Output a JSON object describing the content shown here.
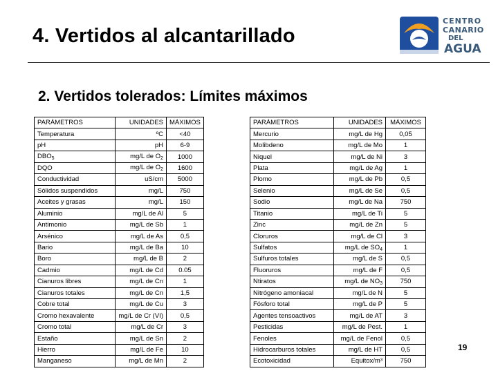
{
  "header": {
    "title": "4. Vertidos al alcantarillado",
    "logo_lines": [
      "CENTRO",
      "CANARIO",
      "DEL",
      "AGUA"
    ]
  },
  "subtitle": "2. Vertidos tolerados: Límites máximos",
  "table_left": {
    "headers": [
      "PARÁMETROS",
      "UNIDADES",
      "MÁXIMOS"
    ],
    "rows": [
      {
        "param": "Temperatura",
        "unit": "ºC",
        "max": "<40"
      },
      {
        "param": "pH",
        "unit": "pH",
        "max": "6-9"
      },
      {
        "param": "DBO",
        "param_sub": "5",
        "unit": "mg/L de O",
        "unit_sub": "2",
        "max": "1000"
      },
      {
        "param": "DQO",
        "unit": "mg/L de O",
        "unit_sub": "2",
        "max": "1600"
      },
      {
        "param": "Conductividad",
        "unit": "uS/cm",
        "max": "5000"
      },
      {
        "param": "Sólidos suspendidos",
        "unit": "mg/L",
        "max": "750"
      },
      {
        "param": "Aceites y grasas",
        "unit": "mg/L",
        "max": "150"
      },
      {
        "param": "Aluminio",
        "unit": "mg/L de Al",
        "max": "5"
      },
      {
        "param": "Antimonio",
        "unit": "mg/L de Sb",
        "max": "1"
      },
      {
        "param": "Arsénico",
        "unit": "mg/L de As",
        "max": "0,5"
      },
      {
        "param": "Bario",
        "unit": "mg/L de Ba",
        "max": "10"
      },
      {
        "param": "Boro",
        "unit": "mg/L de B",
        "max": "2"
      },
      {
        "param": "Cadmio",
        "unit": "mg/L de Cd",
        "max": "0.05"
      },
      {
        "param": "Cianuros libres",
        "unit": "mg/L de Cn",
        "max": "1"
      },
      {
        "param": "Cianuros totales",
        "unit": "mg/L de Cn",
        "max": "1,5"
      },
      {
        "param": "Cobre total",
        "unit": "mg/L de Cu",
        "max": "3"
      },
      {
        "param": "Cromo hexavalente",
        "unit": "mg/L de Cr (VI)",
        "max": "0,5"
      },
      {
        "param": "Cromo total",
        "unit": "mg/L de Cr",
        "max": "3"
      },
      {
        "param": "Estaño",
        "unit": "mg/L de Sn",
        "max": "2"
      },
      {
        "param": "Hierro",
        "unit": "mg/L de Fe",
        "max": "10"
      },
      {
        "param": "Manganeso",
        "unit": "mg/L de Mn",
        "max": "2"
      }
    ]
  },
  "table_right": {
    "headers": [
      "PARÁMETROS",
      "UNIDADES",
      "MÁXIMOS"
    ],
    "rows": [
      {
        "param": "Mercurio",
        "unit": "mg/L de Hg",
        "max": "0,05"
      },
      {
        "param": "Molibdeno",
        "unit": "mg/L de Mo",
        "max": "1"
      },
      {
        "param": "Niquel",
        "unit": "mg/L de Ni",
        "max": "3"
      },
      {
        "param": "Plata",
        "unit": "mg/L de Ag",
        "max": "1"
      },
      {
        "param": "Plomo",
        "unit": "mg/L de Pb",
        "max": "0,5"
      },
      {
        "param": "Selenio",
        "unit": "mg/L de Se",
        "max": "0,5"
      },
      {
        "param": "Sodio",
        "unit": "mg/L de Na",
        "max": "750"
      },
      {
        "param": "Titanio",
        "unit": "mg/L de Ti",
        "max": "5"
      },
      {
        "param": "Zinc",
        "unit": "mg/L de Zn",
        "max": "5"
      },
      {
        "param": "Cloruros",
        "unit": "mg/L de Cl",
        "max": "3"
      },
      {
        "param": "Sulfatos",
        "unit": "mg/L de SO",
        "unit_sub": "4",
        "max": "1"
      },
      {
        "param": "Sulfuros totales",
        "unit": "mg/L de S",
        "max": "0,5"
      },
      {
        "param": "Fluoruros",
        "unit": "mg/L de F",
        "max": "0,5"
      },
      {
        "param": "Ntiratos",
        "unit": "mg/L de NO",
        "unit_sub": "3",
        "max": "750"
      },
      {
        "param": "Nitrógeno amoniacal",
        "unit": "mg/L de N",
        "max": "5"
      },
      {
        "param": "Fósforo total",
        "unit": "mg/L de P",
        "max": "5"
      },
      {
        "param": "Agentes tensoactivos",
        "unit": "mg/L de AT",
        "max": "3"
      },
      {
        "param": "Pesticidas",
        "unit": "mg/L de Pest.",
        "max": "1"
      },
      {
        "param": "Fenoles",
        "unit": "mg/L de Fenol",
        "max": "0,5"
      },
      {
        "param": "Hidrocarburos totales",
        "unit": "mg/L de HT",
        "max": "0,5"
      },
      {
        "param": "Ecotoxicidad",
        "unit": "Equitox/m³",
        "max": "750"
      }
    ]
  },
  "page_number": "19",
  "colors": {
    "logo_blue": "#1f4e9e",
    "logo_orange": "#f0a020",
    "logo_text": "#3a5a7a"
  }
}
